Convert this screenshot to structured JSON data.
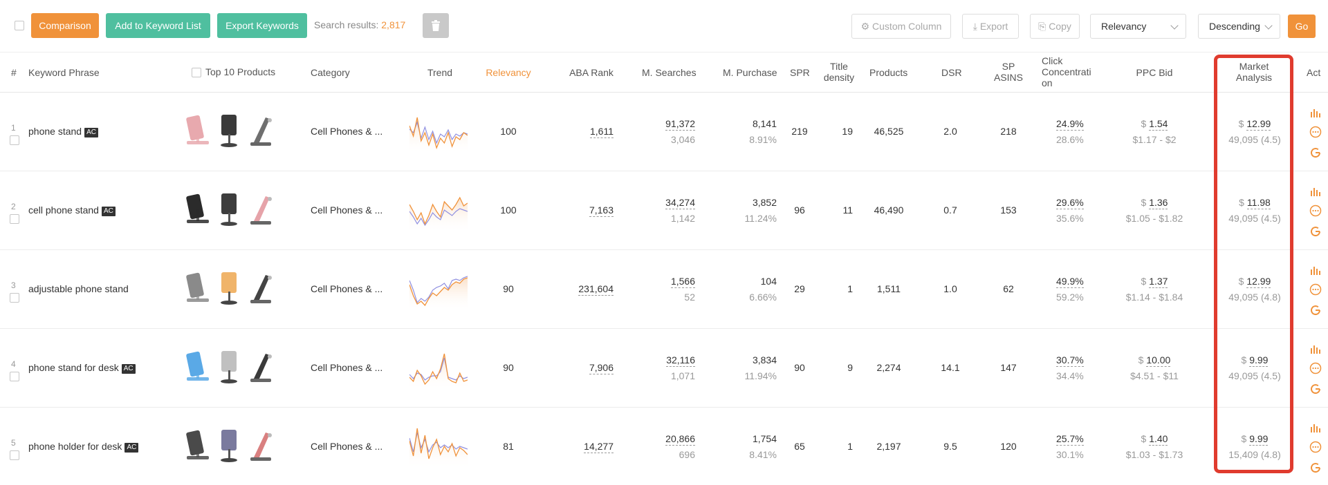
{
  "toolbar": {
    "comparison_label": "Comparison",
    "add_list_label": "Add to Keyword List",
    "export_keywords_label": "Export Keywords",
    "search_results_label": "Search results:",
    "search_results_count": "2,817",
    "custom_column_label": "Custom Column",
    "export_label": "Export",
    "copy_label": "Copy",
    "sort_field": "Relevancy",
    "sort_order": "Descending",
    "go_label": "Go"
  },
  "columns": {
    "num": "#",
    "keyword": "Keyword Phrase",
    "top10": "Top 10 Products",
    "category": "Category",
    "trend": "Trend",
    "relevancy": "Relevancy",
    "aba_rank": "ABA Rank",
    "m_searches": "M. Searches",
    "m_purchase": "M. Purchase",
    "spr": "SPR",
    "title_density_1": "Title",
    "title_density_2": "density",
    "products": "Products",
    "dsr": "DSR",
    "sp_asins_1": "SP",
    "sp_asins_2": "ASINS",
    "click_conc_1": "Click",
    "click_conc_2": "Concentrati",
    "click_conc_3": "on",
    "ppc_bid": "PPC Bid",
    "market_1": "Market",
    "market_2": "Analysis",
    "act": "Act"
  },
  "colors": {
    "accent_orange": "#f0923a",
    "teal": "#4fbf9f",
    "highlight_red": "#e03b2e",
    "trend_orange": "#f0923a",
    "trend_blue": "#8f8fe0"
  },
  "rows": [
    {
      "num": "1",
      "keyword": "phone stand",
      "ac": "AC",
      "category": "Cell Phones & ...",
      "relevancy": "100",
      "aba_rank": "1,611",
      "m_searches": "91,372",
      "m_searches_sub": "3,046",
      "m_purchase": "8,141",
      "m_purchase_sub": "8.91%",
      "spr": "219",
      "title_density": "19",
      "products": "46,525",
      "dsr": "2.0",
      "sp_asins": "218",
      "click_conc": "24.9%",
      "click_conc_sub": "28.6%",
      "ppc_currency": "$",
      "ppc_bid": "1.54",
      "ppc_range": "$1.17 - $2",
      "market_currency": "$",
      "market_price": "12.99",
      "market_sub": "49,095 (4.5)"
    },
    {
      "num": "2",
      "keyword": "cell phone stand",
      "ac": "AC",
      "category": "Cell Phones & ...",
      "relevancy": "100",
      "aba_rank": "7,163",
      "m_searches": "34,274",
      "m_searches_sub": "1,142",
      "m_purchase": "3,852",
      "m_purchase_sub": "11.24%",
      "spr": "96",
      "title_density": "11",
      "products": "46,490",
      "dsr": "0.7",
      "sp_asins": "153",
      "click_conc": "29.6%",
      "click_conc_sub": "35.6%",
      "ppc_currency": "$",
      "ppc_bid": "1.36",
      "ppc_range": "$1.05 - $1.82",
      "market_currency": "$",
      "market_price": "11.98",
      "market_sub": "49,095 (4.5)"
    },
    {
      "num": "3",
      "keyword": "adjustable phone stand",
      "ac": "",
      "category": "Cell Phones & ...",
      "relevancy": "90",
      "aba_rank": "231,604",
      "m_searches": "1,566",
      "m_searches_sub": "52",
      "m_purchase": "104",
      "m_purchase_sub": "6.66%",
      "spr": "29",
      "title_density": "1",
      "products": "1,511",
      "dsr": "1.0",
      "sp_asins": "62",
      "click_conc": "49.9%",
      "click_conc_sub": "59.2%",
      "ppc_currency": "$",
      "ppc_bid": "1.37",
      "ppc_range": "$1.14 - $1.84",
      "market_currency": "$",
      "market_price": "12.99",
      "market_sub": "49,095 (4.8)"
    },
    {
      "num": "4",
      "keyword": "phone stand for desk",
      "ac": "AC",
      "category": "Cell Phones & ...",
      "relevancy": "90",
      "aba_rank": "7,906",
      "m_searches": "32,116",
      "m_searches_sub": "1,071",
      "m_purchase": "3,834",
      "m_purchase_sub": "11.94%",
      "spr": "90",
      "title_density": "9",
      "products": "2,274",
      "dsr": "14.1",
      "sp_asins": "147",
      "click_conc": "30.7%",
      "click_conc_sub": "34.4%",
      "ppc_currency": "$",
      "ppc_bid": "10.00",
      "ppc_range": "$4.51 - $11",
      "market_currency": "$",
      "market_price": "9.99",
      "market_sub": "49,095 (4.5)"
    },
    {
      "num": "5",
      "keyword": "phone holder for desk",
      "ac": "AC",
      "category": "Cell Phones & ...",
      "relevancy": "81",
      "aba_rank": "14,277",
      "m_searches": "20,866",
      "m_searches_sub": "696",
      "m_purchase": "1,754",
      "m_purchase_sub": "8.41%",
      "spr": "65",
      "title_density": "1",
      "products": "2,197",
      "dsr": "9.5",
      "sp_asins": "120",
      "click_conc": "25.7%",
      "click_conc_sub": "30.1%",
      "ppc_currency": "$",
      "ppc_bid": "1.40",
      "ppc_range": "$1.03 - $1.73",
      "market_currency": "$",
      "market_price": "9.99",
      "market_sub": "15,409 (4.8)"
    }
  ]
}
